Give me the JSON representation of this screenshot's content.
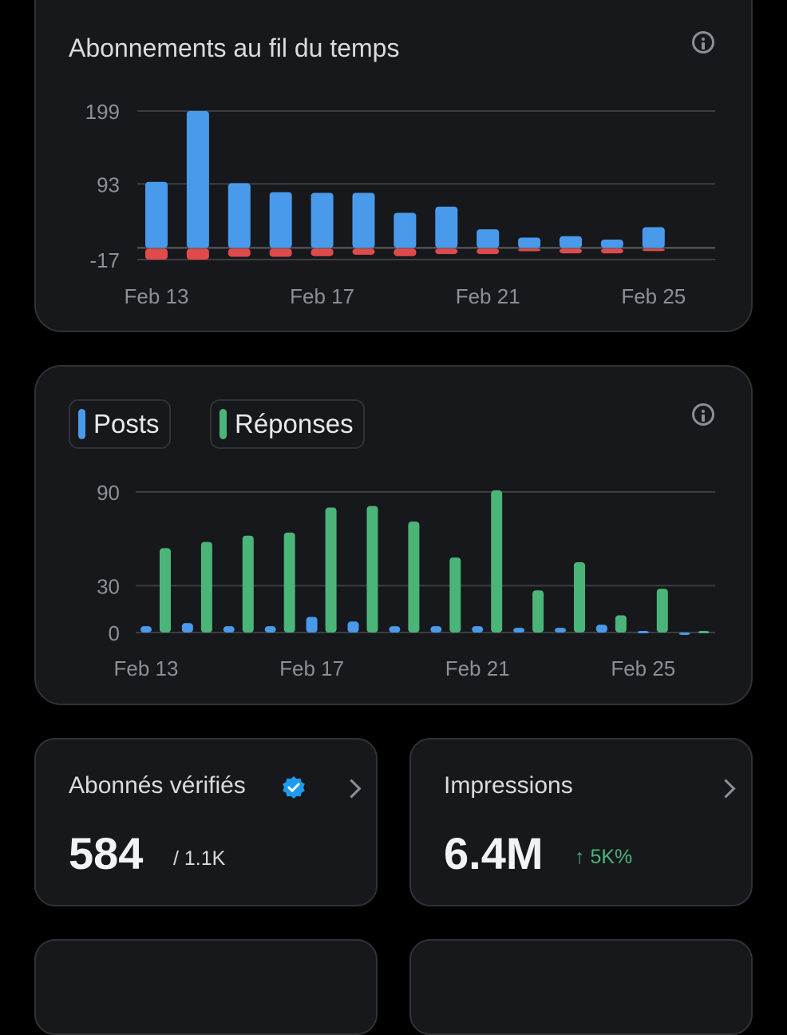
{
  "followers_card": {
    "title": "Abonnements au fil du temps"
  },
  "activity_card": {
    "legend": {
      "posts_label": "Posts",
      "replies_label": "Réponses"
    }
  },
  "stats": {
    "verified": {
      "label": "Abonnés vérifiés",
      "value": "584",
      "total": "/ 1.1K"
    },
    "impressions": {
      "label": "Impressions",
      "value": "6.4M",
      "change": "↑ 5K%"
    }
  },
  "colors": {
    "posts": "#4a9aeb",
    "replies": "#4bb478",
    "loss": "#e04a4a",
    "gridline": "#3a3d41"
  },
  "chart_data": [
    {
      "type": "bar",
      "title": "Abonnements au fil du temps",
      "categories": [
        "Feb 13",
        "Feb 14",
        "Feb 15",
        "Feb 16",
        "Feb 17",
        "Feb 18",
        "Feb 19",
        "Feb 20",
        "Feb 21",
        "Feb 22",
        "Feb 23",
        "Feb 24",
        "Feb 25"
      ],
      "series": [
        {
          "values": [
            96,
            199,
            94,
            81,
            80,
            80,
            51,
            60,
            27,
            15,
            17,
            12,
            30
          ]
        },
        {
          "values": [
            -17,
            -17,
            -13,
            -13,
            -12,
            -10,
            -12,
            -9,
            -9,
            -5,
            -8,
            -8,
            -4
          ]
        }
      ],
      "yticks": [
        "199",
        "93",
        "-17"
      ],
      "xticks": [
        "Feb 13",
        "Feb 17",
        "Feb 21",
        "Feb 25"
      ],
      "ylim": [
        -17,
        199
      ],
      "grid": true
    },
    {
      "type": "bar",
      "categories": [
        "Feb 13",
        "Feb 14",
        "Feb 15",
        "Feb 16",
        "Feb 17",
        "Feb 18",
        "Feb 19",
        "Feb 20",
        "Feb 21",
        "Feb 22",
        "Feb 23",
        "Feb 24",
        "Feb 25",
        "Feb 26"
      ],
      "series": [
        {
          "name": "Posts",
          "values": [
            4,
            6,
            4,
            4,
            10,
            7,
            4,
            4,
            4,
            3,
            3,
            5,
            1,
            0
          ]
        },
        {
          "name": "Réponses",
          "values": [
            54,
            58,
            62,
            64,
            80,
            81,
            71,
            48,
            91,
            27,
            45,
            11,
            28,
            1
          ]
        }
      ],
      "yticks": [
        "90",
        "30",
        "0"
      ],
      "xticks": [
        "Feb 13",
        "Feb 17",
        "Feb 21",
        "Feb 25"
      ],
      "ylim": [
        0,
        90
      ],
      "grid": true
    }
  ]
}
